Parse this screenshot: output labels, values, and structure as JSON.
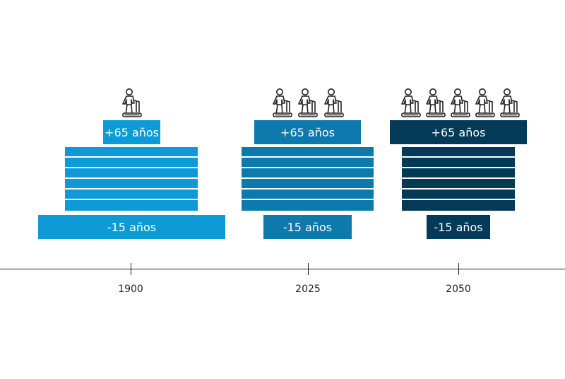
{
  "columns": [
    {
      "year": "1900",
      "color": "#0d9ad6",
      "elderly_label": "+65 años",
      "young_label": "-15 años",
      "elderly_figures": 1
    },
    {
      "year": "2025",
      "color": "#0d79ad",
      "elderly_label": "+65 años",
      "young_label": "-15 años",
      "elderly_figures": 3
    },
    {
      "year": "2050",
      "color": "#023a57",
      "elderly_label": "+65 años",
      "young_label": "-15 años",
      "elderly_figures": 5
    }
  ],
  "icons": {
    "elderly_figure": "elderly-person-with-walker-icon"
  }
}
